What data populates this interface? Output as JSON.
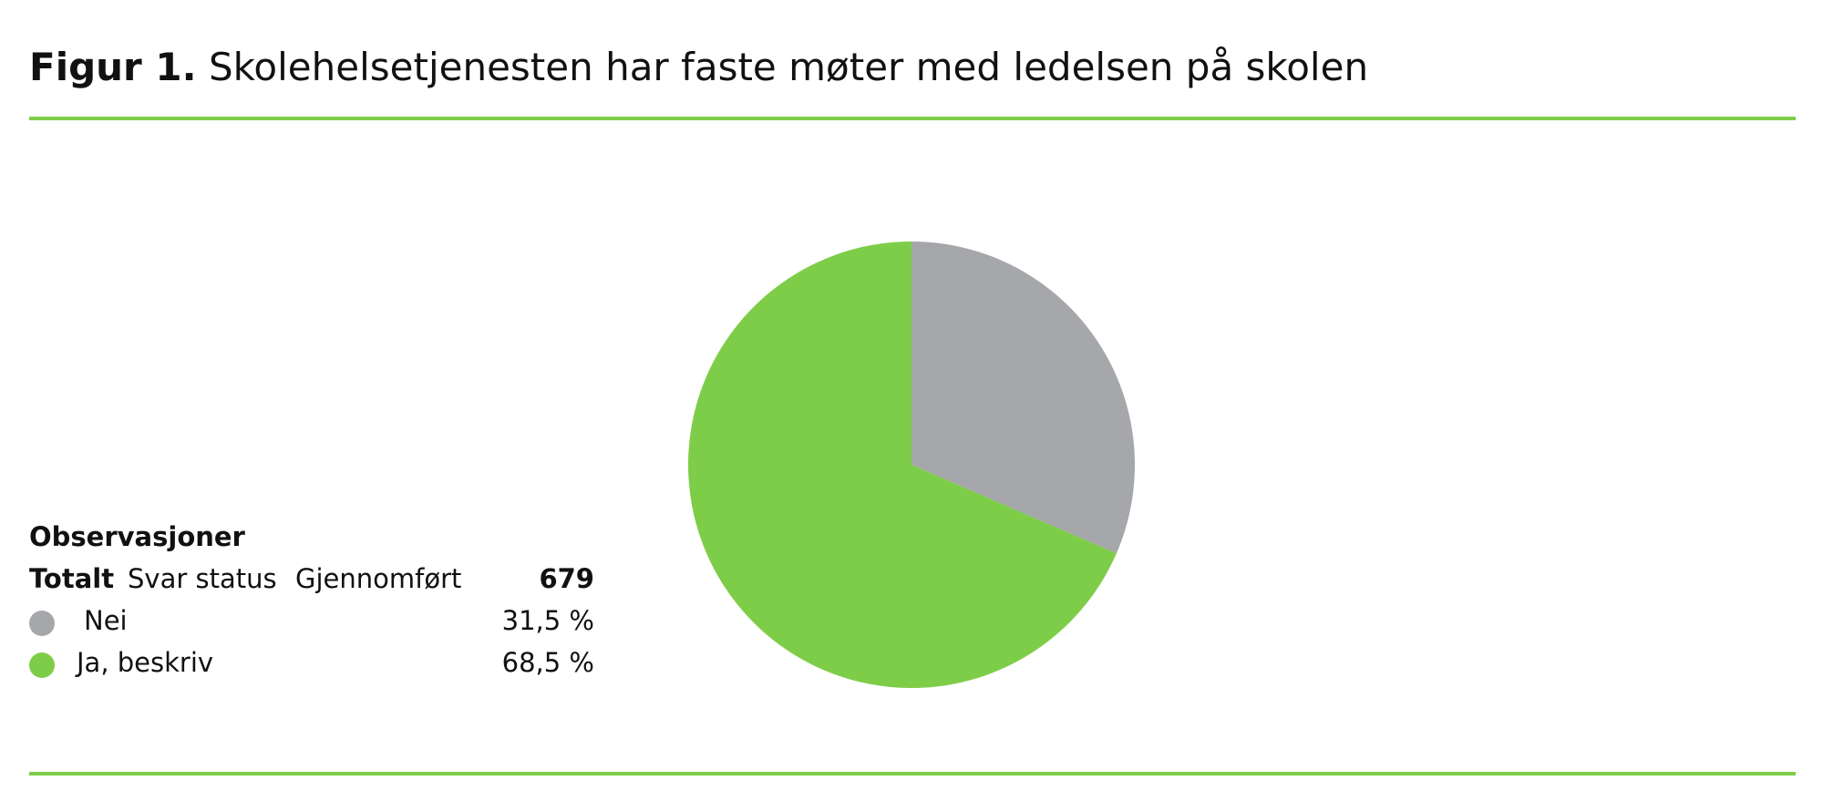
{
  "title": {
    "figure_label": "Figur 1.",
    "text": "Skolehelsetjenesten har faste møter med ledelsen på skolen"
  },
  "colors": {
    "accent": "#7ecd48",
    "gray": "#a6a7aa"
  },
  "legend": {
    "heading": "Observasjoner",
    "total_label": "Totalt",
    "svar_status_label": "Svar status",
    "gjennomfort_label": "Gjennomført",
    "total_value": "679",
    "items": [
      {
        "label": "Nei",
        "value_text": "31,5 %",
        "color": "#a6a7aa"
      },
      {
        "label": "Ja, beskriv",
        "value_text": "68,5 %",
        "color": "#7ecd48"
      }
    ]
  },
  "chart_data": {
    "type": "pie",
    "title": "Skolehelsetjenesten har faste møter med ledelsen på skolen",
    "total_n": 679,
    "slices": [
      {
        "name": "Nei",
        "value": 31.5,
        "color": "#a6a7aa"
      },
      {
        "name": "Ja, beskriv",
        "value": 68.5,
        "color": "#7ecd48"
      }
    ],
    "legend_position": "left"
  }
}
